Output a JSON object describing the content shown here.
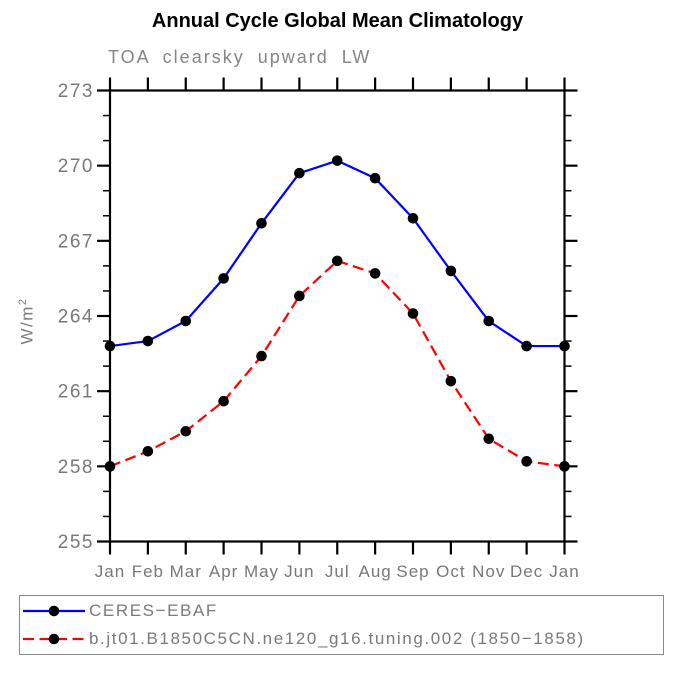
{
  "title": "Annual Cycle Global Mean Climatology",
  "subtitle": "TOA clearsky upward LW",
  "ylabel": {
    "base": "W/m",
    "exp": "2"
  },
  "chart_data": {
    "type": "line",
    "categories": [
      "Jan",
      "Feb",
      "Mar",
      "Apr",
      "May",
      "Jun",
      "Jul",
      "Aug",
      "Sep",
      "Oct",
      "Nov",
      "Dec",
      "Jan"
    ],
    "xlabel": "",
    "ylabel": "W/m2",
    "ylim": [
      255,
      273
    ],
    "yticks": [
      255,
      258,
      261,
      264,
      267,
      270,
      273
    ],
    "minor_tick_step": 1,
    "grid": false,
    "legend_position": "bottom-left-box",
    "marker": {
      "shape": "circle",
      "color": "#000000"
    },
    "series": [
      {
        "name": "CERES−EBAF",
        "color": "#0000ff",
        "style": "solid",
        "values": [
          262.8,
          263.0,
          263.8,
          265.5,
          267.7,
          269.7,
          270.2,
          269.5,
          267.9,
          265.8,
          263.8,
          262.8,
          262.8
        ]
      },
      {
        "name": "b.jt01.B1850C5CN.ne120_g16.tuning.002 (1850−1858)",
        "color": "#ff0000",
        "style": "dashed",
        "values": [
          258.0,
          258.6,
          259.4,
          260.6,
          262.4,
          264.8,
          266.2,
          265.7,
          264.1,
          261.4,
          259.1,
          258.2,
          258.0
        ]
      }
    ]
  }
}
